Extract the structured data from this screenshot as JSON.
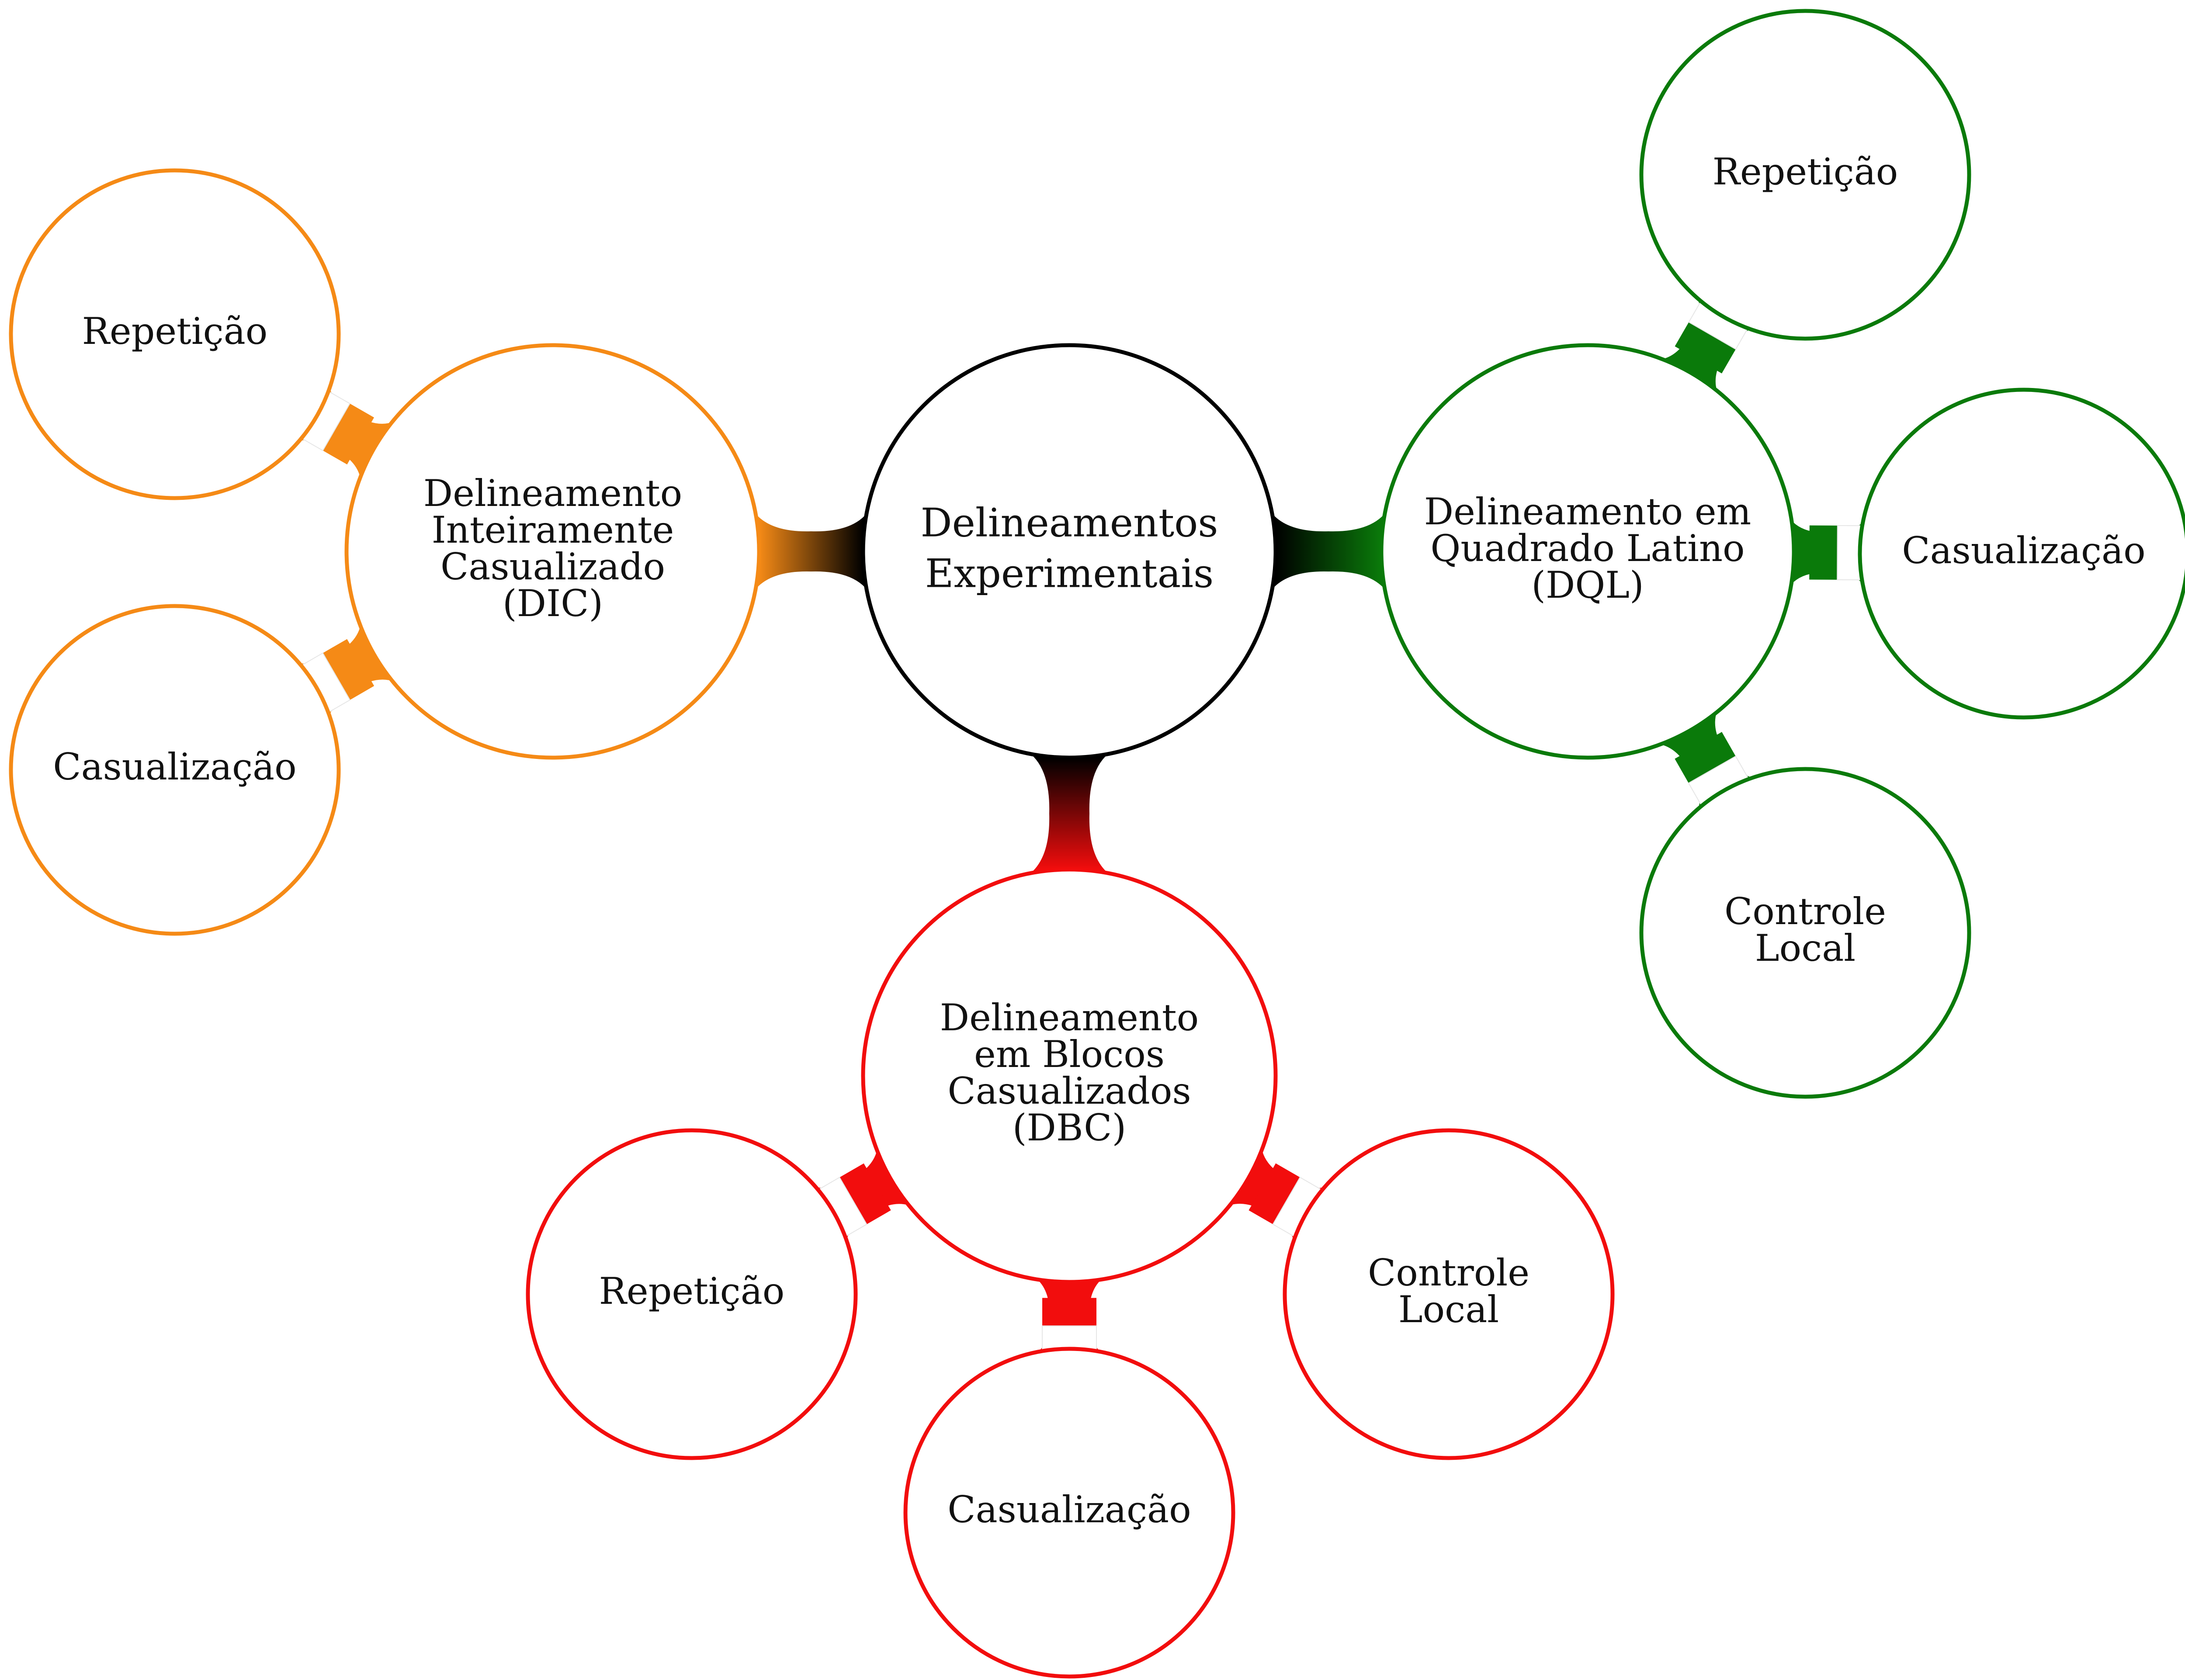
{
  "center": {
    "id": "center",
    "lines": [
      "Delineamentos",
      "Experimentais"
    ],
    "color": "#000000"
  },
  "designs": [
    {
      "id": "dic",
      "lines": [
        "Delineamento",
        "Inteiramente",
        "Casualizado",
        "(DIC)"
      ],
      "color": "#f58a16",
      "children": [
        {
          "id": "dic-repeticao",
          "lines": [
            "Repetição"
          ]
        },
        {
          "id": "dic-casualizacao",
          "lines": [
            "Casualização"
          ]
        }
      ]
    },
    {
      "id": "dql",
      "lines": [
        "Delineamento em",
        "Quadrado Latino",
        "(DQL)"
      ],
      "color": "#0a7a0a",
      "children": [
        {
          "id": "dql-repeticao",
          "lines": [
            "Repetição"
          ]
        },
        {
          "id": "dql-casualizacao",
          "lines": [
            "Casualização"
          ]
        },
        {
          "id": "dql-controle-local",
          "lines": [
            "Controle",
            "Local"
          ]
        }
      ]
    },
    {
      "id": "dbc",
      "lines": [
        "Delineamento",
        "em Blocos",
        "Casualizados",
        "(DBC)"
      ],
      "color": "#f20d0d",
      "children": [
        {
          "id": "dbc-repeticao",
          "lines": [
            "Repetição"
          ]
        },
        {
          "id": "dbc-casualizacao",
          "lines": [
            "Casualização"
          ]
        },
        {
          "id": "dbc-controle-local",
          "lines": [
            "Controle",
            "Local"
          ]
        }
      ]
    }
  ]
}
